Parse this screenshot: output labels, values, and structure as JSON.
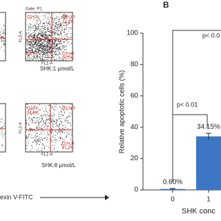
{
  "panel_a": {
    "plots": [
      {
        "gate": "Gate: P1",
        "y_axis": "FL2-A",
        "x_axis": "FL1-A",
        "ul": "Q2-UL",
        "ur": "Q2-UR",
        "ur_pct": "12.1%",
        "ll": "Q2-LL",
        "lr": "Q2-LR",
        "lr_pct": "23.0%",
        "caption": "SHK:1 μmol/L"
      },
      {
        "y_axis": "FL2-A",
        "x_axis": "FL1-A",
        "ul": "Q2-UL",
        "ul_pct": "24.8%",
        "ur": "Q2-UR",
        "lr": "Q2-LR",
        "lr_pct": "31.2%",
        "caption": "SHK:8 μmol/L"
      }
    ],
    "axis_caption": "exin V-FITC"
  },
  "chart_data": {
    "type": "bar",
    "panel_label": "B",
    "y_label": "Relative apoptotic cells (%)",
    "x_label": "SHK conc",
    "categories": [
      "0",
      "1"
    ],
    "values": [
      0.6,
      34.15
    ],
    "value_labels": [
      "0.60%",
      "34.15%"
    ],
    "errors": [
      0.3,
      2
    ],
    "color": "#3d77c4",
    "ylim": [
      0,
      100
    ],
    "yticks": [
      0,
      20,
      40,
      60,
      80,
      100
    ],
    "annotations": [
      "p< 0.0",
      "p< 0.01"
    ]
  }
}
